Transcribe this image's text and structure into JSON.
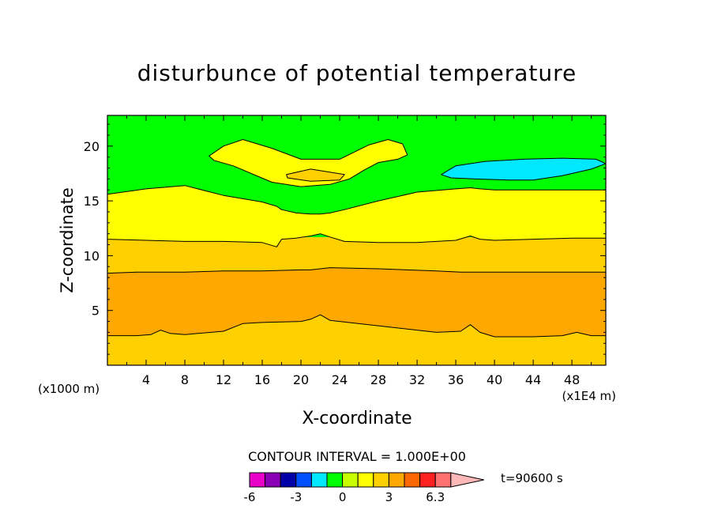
{
  "chart_data": {
    "type": "contour",
    "title": "disturbunce of potential temperature",
    "xlabel": "X-coordinate",
    "ylabel": "Z-coordinate",
    "x_unit_label": "(x1E4 m)",
    "y_unit_label": "(x1000 m)",
    "xlim": [
      0,
      51.5
    ],
    "ylim": [
      0,
      22.8
    ],
    "x_ticks": [
      4,
      8,
      12,
      16,
      20,
      24,
      28,
      32,
      36,
      40,
      44,
      48
    ],
    "y_ticks": [
      5,
      10,
      15,
      20
    ],
    "grid": false,
    "contour_interval_text": "CONTOUR INTERVAL = 1.000E+00",
    "time_text": "t=90600 s",
    "colorbar": {
      "tick_labels": [
        "-6",
        "-3",
        "0",
        "3",
        "6.3"
      ],
      "colors": [
        "#e800c8",
        "#8a00b4",
        "#0000a8",
        "#0050ff",
        "#00e8ff",
        "#00ff00",
        "#c8ff00",
        "#ffff00",
        "#ffd000",
        "#ffa800",
        "#ff6800",
        "#ff2020",
        "#ff7070",
        "#ffb8b8"
      ]
    },
    "bands": [
      {
        "level": "2 to 3",
        "color": "#ffa800",
        "x": [
          0,
          3,
          4.5,
          5.5,
          6.5,
          8,
          12,
          14,
          16,
          20,
          21,
          22,
          23,
          28,
          34,
          36.5,
          37.5,
          38.5,
          40,
          44,
          47,
          48.5,
          50,
          51.5
        ],
        "z_bottom": [
          2.7,
          2.7,
          2.8,
          3.2,
          2.9,
          2.8,
          3.1,
          3.8,
          3.9,
          4.0,
          4.2,
          4.6,
          4.1,
          3.6,
          3.0,
          3.1,
          3.7,
          3.0,
          2.6,
          2.6,
          2.7,
          3.0,
          2.7,
          2.7
        ],
        "z_top": [
          8.4,
          8.5,
          8.5,
          8.5,
          8.5,
          8.5,
          8.6,
          8.6,
          8.6,
          8.7,
          8.7,
          8.8,
          8.9,
          8.8,
          8.6,
          8.5,
          8.5,
          8.5,
          8.5,
          8.5,
          8.5,
          8.5,
          8.5,
          8.5
        ]
      },
      {
        "level": "0 to 1",
        "color": "#ffff00",
        "x": [
          0,
          4,
          8,
          12,
          16,
          17.5,
          18,
          19.5,
          21,
          22,
          23,
          24.5,
          28,
          32,
          36,
          37.5,
          38.5,
          40,
          44,
          48,
          51.5
        ],
        "z_bottom": [
          11.5,
          11.4,
          11.3,
          11.3,
          11.2,
          10.8,
          11.5,
          11.6,
          11.8,
          12.0,
          11.7,
          11.3,
          11.2,
          11.2,
          11.4,
          11.8,
          11.5,
          11.4,
          11.5,
          11.6,
          11.6
        ],
        "z_top": [
          15.6,
          16.1,
          16.4,
          15.5,
          14.9,
          14.5,
          14.2,
          13.9,
          13.8,
          13.8,
          13.9,
          14.2,
          15.0,
          15.8,
          16.1,
          16.2,
          16.1,
          16.0,
          16.0,
          16.0,
          16.0
        ]
      },
      {
        "level": "0 to 1 (upper patch)",
        "color": "#ffff00",
        "x": [
          10.5,
          12,
          14,
          17,
          20,
          24,
          27,
          29,
          30.5,
          31,
          30,
          28,
          26.5,
          25,
          23,
          20,
          17,
          13,
          11
        ],
        "z": [
          19.1,
          20.0,
          20.6,
          19.8,
          18.8,
          18.8,
          20.1,
          20.6,
          20.2,
          19.2,
          18.8,
          18.5,
          17.8,
          17.0,
          16.5,
          16.3,
          16.7,
          18.2,
          18.7
        ]
      },
      {
        "level": "1 to 2 (upper patch)",
        "color": "#ffd000",
        "x": [
          18.5,
          21,
          24.5,
          24,
          21,
          18.6
        ],
        "z": [
          17.4,
          17.9,
          17.4,
          16.9,
          16.8,
          17.1
        ]
      },
      {
        "level": "-2 to -1",
        "color": "#00e8ff",
        "x": [
          34.5,
          36,
          39,
          43,
          47,
          50.5,
          51.5,
          50,
          47,
          44,
          41.5,
          38,
          35.5
        ],
        "z": [
          17.4,
          18.2,
          18.6,
          18.8,
          18.9,
          18.8,
          18.4,
          17.9,
          17.3,
          16.9,
          16.9,
          17.0,
          17.1
        ]
      }
    ]
  }
}
